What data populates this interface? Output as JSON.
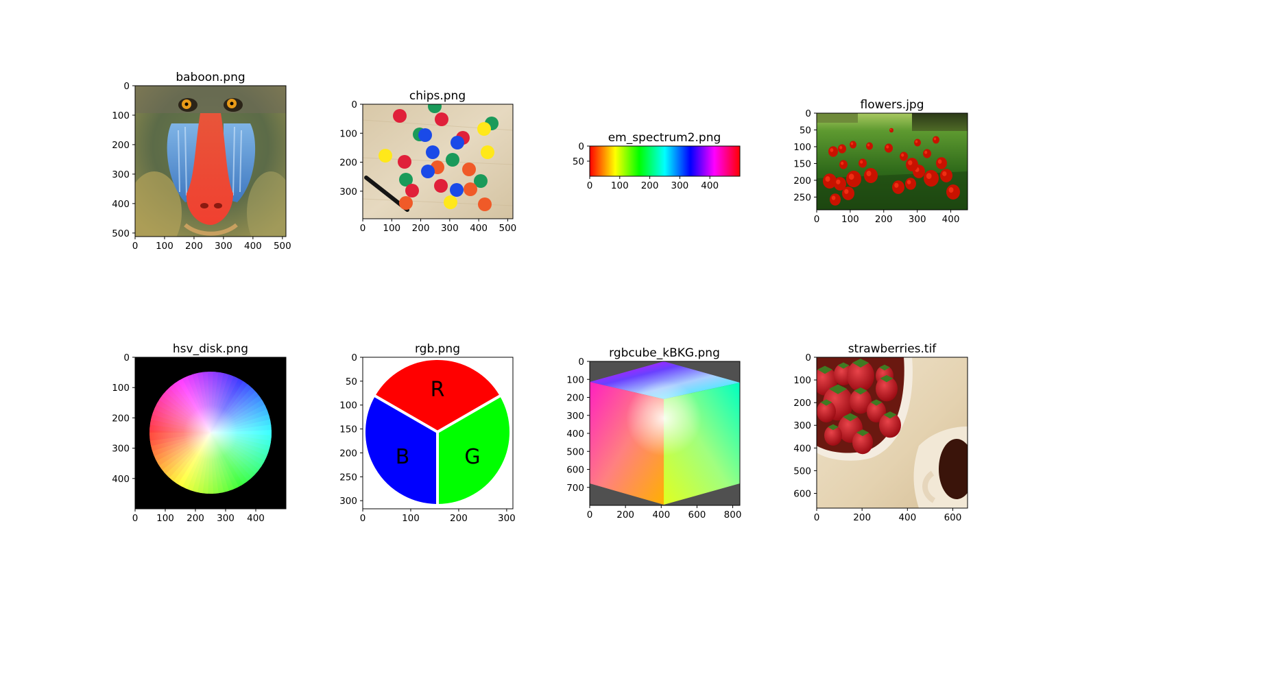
{
  "figure": {
    "panels": [
      {
        "title": "baboon.png",
        "subject": "mandrill face photo",
        "x_ticks": [
          "0",
          "100",
          "200",
          "300",
          "400",
          "500"
        ],
        "y_ticks": [
          "0",
          "100",
          "200",
          "300",
          "400",
          "500"
        ]
      },
      {
        "title": "chips.png",
        "subject": "colored plastic chips and marker on wooden table",
        "x_ticks": [
          "0",
          "100",
          "200",
          "300",
          "400",
          "500"
        ],
        "y_ticks": [
          "0",
          "100",
          "200",
          "300"
        ]
      },
      {
        "title": "em_spectrum2.png",
        "subject": "rainbow hue spectrum gradient",
        "x_ticks": [
          "0",
          "100",
          "200",
          "300",
          "400"
        ],
        "y_ticks": [
          "0",
          "50"
        ]
      },
      {
        "title": "flowers.jpg",
        "subject": "red tulips in green field",
        "x_ticks": [
          "0",
          "100",
          "200",
          "300",
          "400"
        ],
        "y_ticks": [
          "0",
          "50",
          "100",
          "150",
          "200",
          "250"
        ]
      },
      {
        "title": "hsv_disk.png",
        "subject": "HSV color wheel on black background",
        "x_ticks": [
          "0",
          "100",
          "200",
          "300",
          "400"
        ],
        "y_ticks": [
          "0",
          "100",
          "200",
          "300",
          "400"
        ]
      },
      {
        "title": "rgb.png",
        "subject": "RGB sectored circle diagram",
        "x_ticks": [
          "0",
          "100",
          "200",
          "300"
        ],
        "y_ticks": [
          "0",
          "50",
          "100",
          "150",
          "200",
          "250",
          "300"
        ],
        "labels": [
          "R",
          "B",
          "G"
        ]
      },
      {
        "title": "rgbcube_kBKG.png",
        "subject": "RGB color cube on dark gray background",
        "x_ticks": [
          "0",
          "200",
          "400",
          "600",
          "800"
        ],
        "y_ticks": [
          "0",
          "100",
          "200",
          "300",
          "400",
          "500",
          "600",
          "700"
        ]
      },
      {
        "title": "strawberries.tif",
        "subject": "bowl of strawberries and cup of coffee",
        "x_ticks": [
          "0",
          "200",
          "400",
          "600"
        ],
        "y_ticks": [
          "0",
          "100",
          "200",
          "300",
          "400",
          "500",
          "600"
        ]
      }
    ]
  },
  "colors": {
    "hsv_background": "#000000",
    "cube_background": "#505050",
    "rgb_red": "#ff0000",
    "rgb_green": "#00ff00",
    "rgb_blue": "#0000ff",
    "tulip_red": "#cc1100",
    "strawberry_red": "#c4151c"
  }
}
